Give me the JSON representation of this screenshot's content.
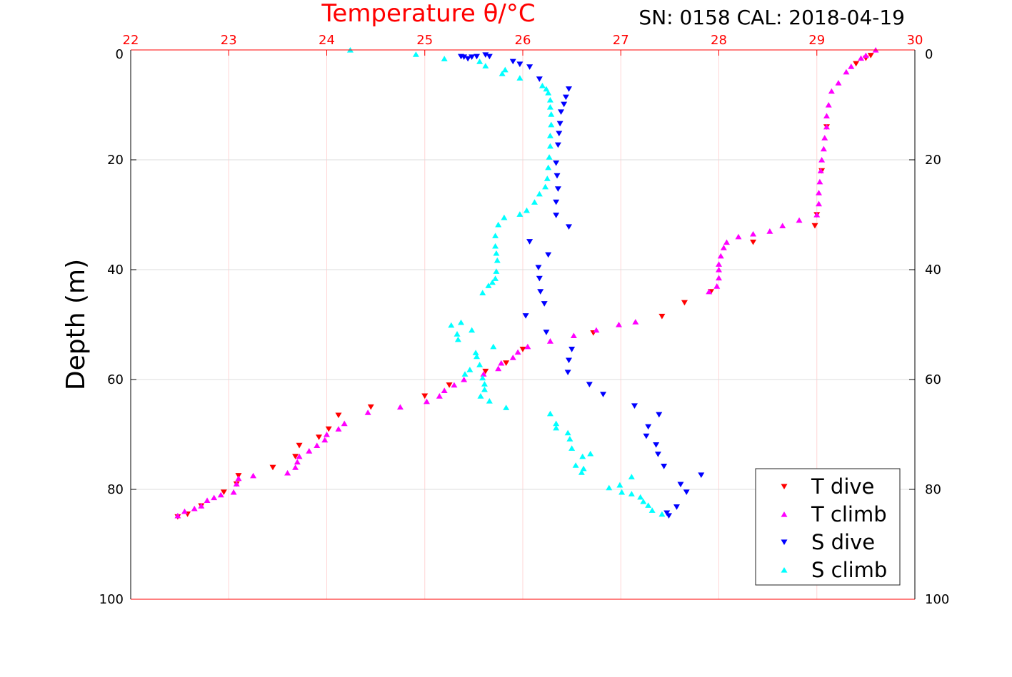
{
  "chart_data": {
    "type": "scatter",
    "title": "Temperature θ/°C",
    "subtitle": "SN: 0158  CAL: 2018-04-19",
    "xlabel": "Temperature θ/°C",
    "ylabel": "Depth (m)",
    "xlim": [
      22,
      30
    ],
    "ylim": [
      0,
      100
    ],
    "y_reversed": true,
    "x_ticks": [
      "22",
      "23",
      "24",
      "25",
      "26",
      "27",
      "28",
      "29",
      "30"
    ],
    "y_ticks": [
      "0",
      "20",
      "40",
      "60",
      "80",
      "100"
    ],
    "grid": true,
    "legend_position": "bottom-right",
    "series": [
      {
        "name": "T dive",
        "color": "#ff0000",
        "marker": "triangle-down",
        "points": [
          [
            29.55,
            1
          ],
          [
            29.5,
            1.5
          ],
          [
            29.4,
            2.5
          ],
          [
            29.1,
            14
          ],
          [
            29.05,
            22
          ],
          [
            29.0,
            30
          ],
          [
            28.98,
            32
          ],
          [
            28.35,
            35
          ],
          [
            27.92,
            44
          ],
          [
            27.65,
            46
          ],
          [
            27.42,
            48.5
          ],
          [
            26.72,
            51.5
          ],
          [
            26.0,
            54.5
          ],
          [
            25.83,
            57
          ],
          [
            25.62,
            58.5
          ],
          [
            25.25,
            61
          ],
          [
            25.0,
            63
          ],
          [
            24.45,
            65
          ],
          [
            24.12,
            66.5
          ],
          [
            24.02,
            69
          ],
          [
            23.92,
            70.5
          ],
          [
            23.72,
            72
          ],
          [
            23.68,
            74
          ],
          [
            23.45,
            76
          ],
          [
            23.1,
            77.5
          ],
          [
            23.08,
            79
          ],
          [
            22.95,
            80.5
          ],
          [
            22.72,
            83
          ],
          [
            22.58,
            84.5
          ],
          [
            22.48,
            85
          ]
        ]
      },
      {
        "name": "T climb",
        "color": "#ff00ff",
        "marker": "triangle-up",
        "points": [
          [
            29.6,
            0
          ],
          [
            29.5,
            1
          ],
          [
            29.45,
            1.5
          ],
          [
            29.35,
            3
          ],
          [
            29.3,
            4
          ],
          [
            29.22,
            6
          ],
          [
            29.15,
            7.5
          ],
          [
            29.12,
            10
          ],
          [
            29.1,
            12
          ],
          [
            29.1,
            14
          ],
          [
            29.08,
            16
          ],
          [
            29.07,
            18
          ],
          [
            29.05,
            20
          ],
          [
            29.04,
            22
          ],
          [
            29.03,
            24
          ],
          [
            29.02,
            26
          ],
          [
            29.02,
            28
          ],
          [
            29.0,
            30
          ],
          [
            28.82,
            31
          ],
          [
            28.65,
            32
          ],
          [
            28.52,
            33
          ],
          [
            28.35,
            33.5
          ],
          [
            28.2,
            34
          ],
          [
            28.08,
            35
          ],
          [
            28.05,
            36
          ],
          [
            28.02,
            37.5
          ],
          [
            28.0,
            39
          ],
          [
            28.0,
            40
          ],
          [
            28.0,
            41.5
          ],
          [
            27.98,
            43
          ],
          [
            27.9,
            44
          ],
          [
            27.15,
            49.5
          ],
          [
            26.98,
            50
          ],
          [
            26.75,
            51
          ],
          [
            26.52,
            52
          ],
          [
            26.28,
            53
          ],
          [
            26.05,
            54
          ],
          [
            25.95,
            55
          ],
          [
            25.9,
            56
          ],
          [
            25.78,
            57
          ],
          [
            25.75,
            58
          ],
          [
            25.6,
            59
          ],
          [
            25.4,
            60
          ],
          [
            25.3,
            61
          ],
          [
            25.2,
            62
          ],
          [
            25.15,
            63
          ],
          [
            25.02,
            64
          ],
          [
            24.75,
            65
          ],
          [
            24.42,
            66
          ],
          [
            24.18,
            68
          ],
          [
            24.12,
            69
          ],
          [
            24.0,
            70
          ],
          [
            23.98,
            71
          ],
          [
            23.9,
            72
          ],
          [
            23.82,
            73
          ],
          [
            23.72,
            74
          ],
          [
            23.7,
            75
          ],
          [
            23.68,
            76
          ],
          [
            23.6,
            77
          ],
          [
            23.25,
            77.5
          ],
          [
            23.1,
            78
          ],
          [
            23.08,
            79
          ],
          [
            23.05,
            80.5
          ],
          [
            22.92,
            81
          ],
          [
            22.85,
            81.5
          ],
          [
            22.78,
            82
          ],
          [
            22.72,
            83
          ],
          [
            22.65,
            83.5
          ],
          [
            22.55,
            84
          ],
          [
            22.48,
            84.8
          ]
        ]
      },
      {
        "name": "S dive",
        "color": "#0000ff",
        "marker": "triangle-down",
        "points": [
          [
            25.37,
            1.2
          ],
          [
            25.4,
            1.3
          ],
          [
            25.44,
            1.6
          ],
          [
            25.48,
            1.3
          ],
          [
            25.53,
            1.2
          ],
          [
            25.62,
            0.9
          ],
          [
            25.66,
            1.2
          ],
          [
            25.9,
            2.1
          ],
          [
            25.97,
            2.6
          ],
          [
            26.07,
            3.1
          ],
          [
            26.17,
            5.3
          ],
          [
            26.47,
            7.1
          ],
          [
            26.44,
            8.6
          ],
          [
            26.42,
            9.9
          ],
          [
            26.39,
            11.3
          ],
          [
            26.38,
            13.4
          ],
          [
            26.37,
            15.2
          ],
          [
            26.36,
            17.3
          ],
          [
            26.34,
            20.6
          ],
          [
            26.35,
            22.9
          ],
          [
            26.36,
            25.3
          ],
          [
            26.34,
            27.7
          ],
          [
            26.34,
            30.1
          ],
          [
            26.47,
            32.2
          ],
          [
            26.07,
            34.9
          ],
          [
            26.26,
            37.3
          ],
          [
            26.16,
            39.6
          ],
          [
            26.17,
            41.6
          ],
          [
            26.18,
            44.0
          ],
          [
            26.22,
            46.2
          ],
          [
            26.03,
            48.4
          ],
          [
            26.24,
            51.4
          ],
          [
            26.5,
            54.5
          ],
          [
            26.47,
            56.5
          ],
          [
            26.46,
            58.7
          ],
          [
            26.68,
            60.9
          ],
          [
            26.82,
            62.7
          ],
          [
            27.14,
            64.8
          ],
          [
            27.39,
            66.4
          ],
          [
            27.28,
            68.6
          ],
          [
            27.26,
            70.3
          ],
          [
            27.36,
            71.9
          ],
          [
            27.38,
            73.6
          ],
          [
            27.44,
            75.8
          ],
          [
            27.82,
            77.4
          ],
          [
            27.61,
            79.1
          ],
          [
            27.67,
            80.5
          ],
          [
            27.57,
            83.2
          ],
          [
            27.47,
            84.3
          ],
          [
            27.49,
            84.8
          ]
        ]
      },
      {
        "name": "S climb",
        "color": "#00ffff",
        "marker": "triangle-up",
        "points": [
          [
            24.24,
            0
          ],
          [
            24.91,
            0.8
          ],
          [
            25.2,
            1.6
          ],
          [
            25.56,
            2.1
          ],
          [
            25.62,
            2.9
          ],
          [
            25.79,
            4.3
          ],
          [
            25.82,
            3.6
          ],
          [
            25.97,
            5.1
          ],
          [
            26.2,
            6.5
          ],
          [
            26.24,
            7.1
          ],
          [
            26.26,
            7.8
          ],
          [
            26.28,
            9.1
          ],
          [
            26.28,
            10.4
          ],
          [
            26.29,
            11.7
          ],
          [
            26.29,
            13.6
          ],
          [
            26.28,
            15.6
          ],
          [
            26.28,
            17.5
          ],
          [
            26.27,
            19.5
          ],
          [
            26.26,
            21.4
          ],
          [
            26.25,
            23.4
          ],
          [
            26.23,
            24.9
          ],
          [
            26.17,
            26.2
          ],
          [
            26.12,
            27.7
          ],
          [
            26.04,
            29.2
          ],
          [
            25.97,
            29.9
          ],
          [
            25.81,
            30.5
          ],
          [
            25.75,
            31.8
          ],
          [
            25.72,
            33.8
          ],
          [
            25.72,
            35.7
          ],
          [
            25.73,
            37.0
          ],
          [
            25.74,
            38.3
          ],
          [
            25.73,
            40.3
          ],
          [
            25.72,
            41.6
          ],
          [
            25.69,
            42.3
          ],
          [
            25.65,
            42.9
          ],
          [
            25.59,
            44.2
          ],
          [
            25.37,
            49.6
          ],
          [
            25.27,
            50.1
          ],
          [
            25.33,
            51.7
          ],
          [
            25.48,
            51.0
          ],
          [
            25.34,
            52.7
          ],
          [
            25.7,
            54.0
          ],
          [
            25.52,
            55.1
          ],
          [
            25.53,
            55.8
          ],
          [
            25.56,
            57.3
          ],
          [
            25.46,
            58.2
          ],
          [
            25.41,
            59.0
          ],
          [
            25.59,
            59.7
          ],
          [
            25.61,
            60.8
          ],
          [
            25.61,
            61.8
          ],
          [
            25.57,
            63.0
          ],
          [
            25.66,
            63.9
          ],
          [
            25.83,
            65.1
          ],
          [
            26.28,
            66.2
          ],
          [
            26.34,
            68.0
          ],
          [
            26.34,
            68.8
          ],
          [
            26.46,
            69.7
          ],
          [
            26.48,
            70.8
          ],
          [
            26.5,
            72.5
          ],
          [
            26.69,
            73.5
          ],
          [
            26.61,
            74.0
          ],
          [
            26.54,
            75.6
          ],
          [
            26.62,
            76.2
          ],
          [
            26.6,
            76.9
          ],
          [
            26.88,
            79.7
          ],
          [
            26.99,
            79.2
          ],
          [
            27.01,
            80.5
          ],
          [
            27.11,
            77.7
          ],
          [
            27.11,
            80.8
          ],
          [
            27.2,
            81.4
          ],
          [
            27.23,
            82.2
          ],
          [
            27.28,
            82.9
          ],
          [
            27.32,
            83.8
          ],
          [
            27.42,
            84.5
          ]
        ]
      }
    ]
  }
}
